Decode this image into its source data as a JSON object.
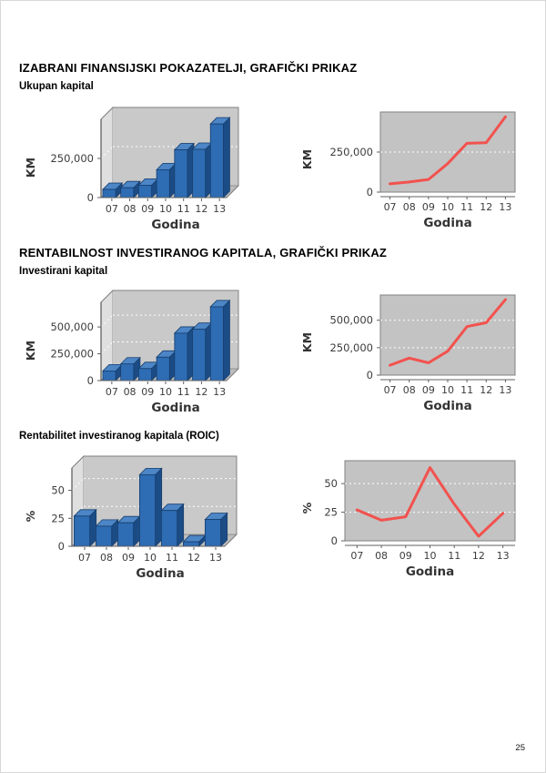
{
  "page": {
    "number": "25"
  },
  "sections": [
    {
      "title": "IZABRANI FINANSIJSKI POKAZATELJI, GRAFIČKI PRIKAZ",
      "subtitle": "Ukupan kapital"
    },
    {
      "title": "RENTABILNOST INVESTIRANOG KAPITALA, GRAFIČKI PRIKAZ",
      "subtitle": "Investirani kapital"
    },
    {
      "subtitle": "Rentabilitet investiranog kapitala (ROIC)"
    }
  ],
  "colors": {
    "bar_front": "#2e6cb3",
    "bar_side": "#1c4c85",
    "bar_top": "#4d86c6",
    "bar_outline": "#163e6e",
    "line_series": "#f2524e",
    "plot_bg": "#c3c3c3",
    "wall_back": "#c9c9c9",
    "wall_left": "#dfdfdf",
    "floor": "#bdbdbd",
    "grid": "#ffffff",
    "axis": "#606060",
    "frame": "#808080",
    "tick_text": "#3c3c3c",
    "axis_label_text": "#333333"
  },
  "chart_data": [
    {
      "type": "bar",
      "style": "3d",
      "categories": [
        "07",
        "08",
        "09",
        "10",
        "11",
        "12",
        "13"
      ],
      "values": [
        52000,
        63000,
        79000,
        178000,
        305000,
        308000,
        470000
      ],
      "xlabel": "Godina",
      "ylabel": "KM",
      "ylim": [
        0,
        500000
      ],
      "ytick_values": [
        0,
        250000
      ],
      "ytick_labels": [
        "0",
        "250,000"
      ],
      "grid": "dotted-white",
      "legend": "none"
    },
    {
      "type": "line",
      "categories": [
        "07",
        "08",
        "09",
        "10",
        "11",
        "12",
        "13"
      ],
      "values": [
        52000,
        63000,
        79000,
        178000,
        305000,
        308000,
        470000
      ],
      "xlabel": "Godina",
      "ylabel": "KM",
      "ylim": [
        0,
        500000
      ],
      "ytick_values": [
        0,
        250000
      ],
      "ytick_labels": [
        "0",
        "250,000"
      ],
      "grid": "dotted-white",
      "legend": "none"
    },
    {
      "type": "bar",
      "style": "3d",
      "categories": [
        "07",
        "08",
        "09",
        "10",
        "11",
        "12",
        "13"
      ],
      "values": [
        90000,
        155000,
        112000,
        218000,
        442000,
        478000,
        688000
      ],
      "xlabel": "Godina",
      "ylabel": "KM",
      "ylim": [
        0,
        730000
      ],
      "ytick_values": [
        0,
        250000,
        500000
      ],
      "ytick_labels": [
        "0",
        "250,000",
        "500,000"
      ],
      "grid": "dotted-white",
      "legend": "none"
    },
    {
      "type": "line",
      "categories": [
        "07",
        "08",
        "09",
        "10",
        "11",
        "12",
        "13"
      ],
      "values": [
        90000,
        155000,
        112000,
        218000,
        442000,
        478000,
        688000
      ],
      "xlabel": "Godina",
      "ylabel": "KM",
      "ylim": [
        0,
        730000
      ],
      "ytick_values": [
        0,
        250000,
        500000
      ],
      "ytick_labels": [
        "0",
        "250,000",
        "500,000"
      ],
      "grid": "dotted-white",
      "legend": "none"
    },
    {
      "type": "bar",
      "style": "3d",
      "categories": [
        "07",
        "08",
        "09",
        "10",
        "11",
        "12",
        "13"
      ],
      "values": [
        27,
        18,
        21,
        64,
        32,
        4,
        24
      ],
      "xlabel": "Godina",
      "ylabel": "%",
      "ylim": [
        0,
        70
      ],
      "ytick_values": [
        0,
        25,
        50
      ],
      "ytick_labels": [
        "0",
        "25",
        "50"
      ],
      "grid": "dotted-white",
      "legend": "none"
    },
    {
      "type": "line",
      "categories": [
        "07",
        "08",
        "09",
        "10",
        "11",
        "12",
        "13"
      ],
      "values": [
        27,
        18,
        21,
        64,
        32,
        4,
        24
      ],
      "xlabel": "Godina",
      "ylabel": "%",
      "ylim": [
        0,
        70
      ],
      "ytick_values": [
        0,
        25,
        50
      ],
      "ytick_labels": [
        "0",
        "25",
        "50"
      ],
      "grid": "dotted-white",
      "legend": "none"
    }
  ]
}
